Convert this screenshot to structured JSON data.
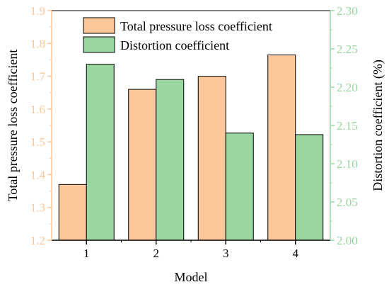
{
  "chart_data": {
    "type": "bar",
    "categories": [
      "1",
      "2",
      "3",
      "4"
    ],
    "xlabel": "Model",
    "series": [
      {
        "name": "Total pressure loss coefficient",
        "axis": "left",
        "color": "#FCC89B",
        "values": [
          1.37,
          1.66,
          1.7,
          1.765
        ]
      },
      {
        "name": "Distortion coefficient",
        "axis": "right",
        "color": "#99D6A0",
        "values": [
          2.23,
          2.21,
          2.14,
          2.138
        ]
      }
    ],
    "y_left": {
      "label": "Total pressure loss coefficient",
      "ylim": [
        1.2,
        1.9
      ],
      "ticks": [
        1.2,
        1.3,
        1.4,
        1.5,
        1.6,
        1.7,
        1.8,
        1.9
      ],
      "tick_labels": [
        "1.2",
        "1.3",
        "1.4",
        "1.5",
        "1.6",
        "1.7",
        "1.8",
        "1.9"
      ],
      "color": "#FCC89B",
      "label_color": "#000000"
    },
    "y_right": {
      "label": "Distortion coefficient (%)",
      "ylim": [
        2.0,
        2.3
      ],
      "ticks": [
        2.0,
        2.05,
        2.1,
        2.15,
        2.2,
        2.25,
        2.3
      ],
      "tick_labels": [
        "2.00",
        "2.05",
        "2.10",
        "2.15",
        "2.20",
        "2.25",
        "2.30"
      ],
      "color": "#99D6A0",
      "label_color": "#000000"
    },
    "grid": false,
    "legend_position": "top-center"
  }
}
